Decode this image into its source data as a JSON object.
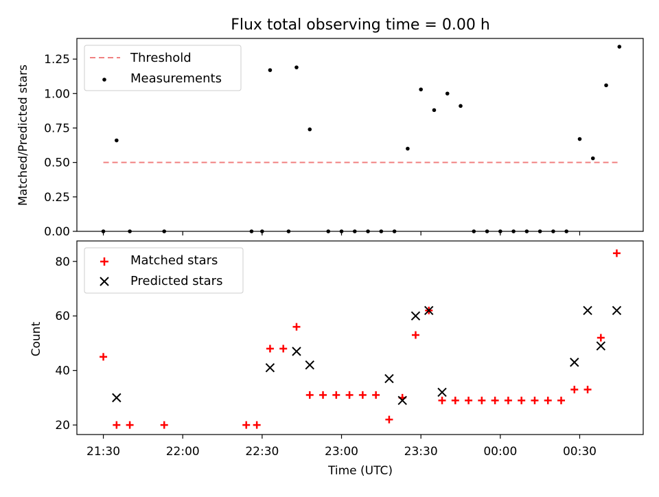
{
  "chart_data": [
    {
      "type": "scatter",
      "title": "Flux total observing time = 0.00 h",
      "xlabel": "",
      "ylabel": "Matched/Predicted stars",
      "ylim": [
        0,
        1.4
      ],
      "yticks": [
        0,
        0.25,
        0.5,
        0.75,
        1.0,
        1.25
      ],
      "ytick_labels": [
        "0.00",
        "0.25",
        "0.50",
        "0.75",
        "1.00",
        "1.25"
      ],
      "xlim_minutes": [
        1280,
        1494
      ],
      "legend_position": "top-left",
      "threshold": {
        "name": "Threshold",
        "value": 0.5,
        "x_range_minutes": [
          1290,
          1485
        ],
        "color": "#f08080"
      },
      "series": [
        {
          "name": "Measurements",
          "marker": "dot",
          "color": "#000000",
          "x_minutes": [
            1290,
            1295,
            1300,
            1313,
            1346,
            1350,
            1353,
            1360,
            1363,
            1368,
            1375,
            1380,
            1385,
            1390,
            1395,
            1400,
            1405,
            1410,
            1415,
            1420,
            1425,
            1430,
            1435,
            1440,
            1445,
            1450,
            1455,
            1460,
            1465,
            1470,
            1475,
            1480,
            1485
          ],
          "y": [
            0,
            0.66,
            0,
            0,
            0,
            0,
            1.17,
            0,
            1.19,
            0.74,
            0,
            0,
            0,
            0,
            0,
            0,
            0.6,
            1.03,
            0.88,
            1.0,
            0.91,
            0,
            0,
            0,
            0,
            0,
            0,
            0,
            0,
            0.67,
            0.53,
            1.06,
            1.34
          ]
        }
      ]
    },
    {
      "type": "scatter",
      "title": "",
      "xlabel": "Time (UTC)",
      "ylabel": "Count",
      "ylim": [
        16.5,
        87.5
      ],
      "yticks": [
        20,
        40,
        60,
        80
      ],
      "ytick_labels": [
        "20",
        "40",
        "60",
        "80"
      ],
      "xlim_minutes": [
        1280,
        1494
      ],
      "xticks_minutes": [
        1290,
        1320,
        1350,
        1380,
        1410,
        1440,
        1470
      ],
      "xtick_labels": [
        "21:30",
        "22:00",
        "22:30",
        "23:00",
        "23:30",
        "00:00",
        "00:30"
      ],
      "legend_position": "top-left",
      "series": [
        {
          "name": "Matched stars",
          "marker": "plus",
          "color": "#ff0000",
          "x_minutes": [
            1290,
            1295,
            1300,
            1313,
            1344,
            1348,
            1353,
            1358,
            1363,
            1368,
            1373,
            1378,
            1383,
            1388,
            1393,
            1398,
            1403,
            1408,
            1413,
            1418,
            1423,
            1428,
            1433,
            1438,
            1443,
            1448,
            1453,
            1458,
            1463,
            1468,
            1473,
            1478,
            1484
          ],
          "y": [
            45,
            20,
            20,
            20,
            20,
            20,
            48,
            48,
            56,
            31,
            31,
            31,
            31,
            31,
            31,
            22,
            30,
            53,
            62,
            29,
            29,
            29,
            29,
            29,
            29,
            29,
            29,
            29,
            29,
            33,
            33,
            52,
            83
          ]
        },
        {
          "name": "Predicted stars",
          "marker": "x",
          "color": "#000000",
          "x_minutes": [
            1295,
            1353,
            1363,
            1368,
            1398,
            1403,
            1408,
            1413,
            1418,
            1468,
            1473,
            1478,
            1484
          ],
          "y": [
            30,
            41,
            47,
            42,
            37,
            29,
            60,
            62,
            32,
            43,
            62,
            49,
            62
          ]
        }
      ]
    }
  ]
}
